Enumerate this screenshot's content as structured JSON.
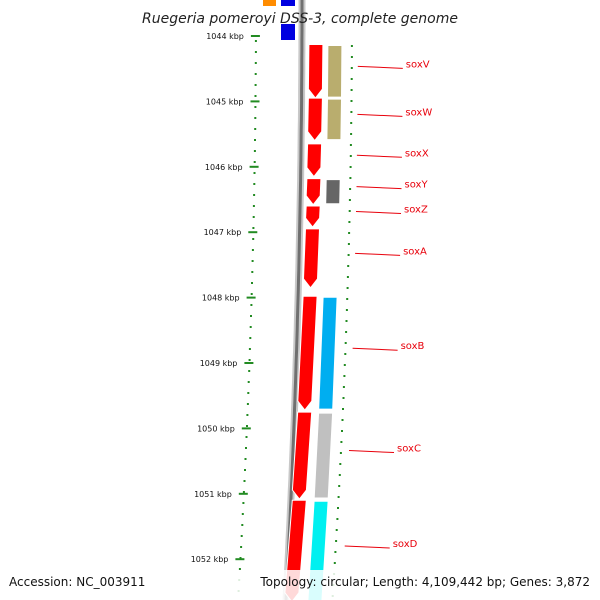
{
  "title": "Ruegeria pomeroyi DSS-3, complete genome",
  "footer": {
    "accession": "Accession: NC_003911",
    "topology": "Topology: circular; Length: 4,109,442 bp; Genes: 3,872"
  },
  "axis_ticks": [
    {
      "label": "1044 kbp",
      "kbp": 1044
    },
    {
      "label": "1045 kbp",
      "kbp": 1045
    },
    {
      "label": "1046 kbp",
      "kbp": 1046
    },
    {
      "label": "1047 kbp",
      "kbp": 1047
    },
    {
      "label": "1048 kbp",
      "kbp": 1048
    },
    {
      "label": "1049 kbp",
      "kbp": 1049
    },
    {
      "label": "1050 kbp",
      "kbp": 1050
    },
    {
      "label": "1051 kbp",
      "kbp": 1051
    },
    {
      "label": "1052 kbp",
      "kbp": 1052
    }
  ],
  "genes": [
    {
      "label": "soxV",
      "start_kbp": 1044.13,
      "end_kbp": 1044.95,
      "strand_color": "#ff0000",
      "cog_color": "#b9ad6e"
    },
    {
      "label": "soxW",
      "start_kbp": 1044.95,
      "end_kbp": 1045.6,
      "strand_color": "#ff0000",
      "cog_color": "#b9ad6e"
    },
    {
      "label": "soxX",
      "start_kbp": 1045.65,
      "end_kbp": 1046.15,
      "strand_color": "#ff0000",
      "cog_color": ""
    },
    {
      "label": "soxY",
      "start_kbp": 1046.18,
      "end_kbp": 1046.58,
      "strand_color": "#ff0000",
      "cog_color": "#666666"
    },
    {
      "label": "soxZ",
      "start_kbp": 1046.6,
      "end_kbp": 1046.92,
      "strand_color": "#ff0000",
      "cog_color": ""
    },
    {
      "label": "soxA",
      "start_kbp": 1046.95,
      "end_kbp": 1047.85,
      "strand_color": "#ff0000",
      "cog_color": ""
    },
    {
      "label": "soxB",
      "start_kbp": 1047.98,
      "end_kbp": 1049.72,
      "strand_color": "#ff0000",
      "cog_color": "#00aef0"
    },
    {
      "label": "soxC",
      "start_kbp": 1049.75,
      "end_kbp": 1051.08,
      "strand_color": "#ff0000",
      "cog_color": "#c0c0c0"
    },
    {
      "label": "soxD",
      "start_kbp": 1051.1,
      "end_kbp": 1052.65,
      "strand_color": "#ff0000",
      "cog_color": "#00f0f0"
    }
  ]
}
